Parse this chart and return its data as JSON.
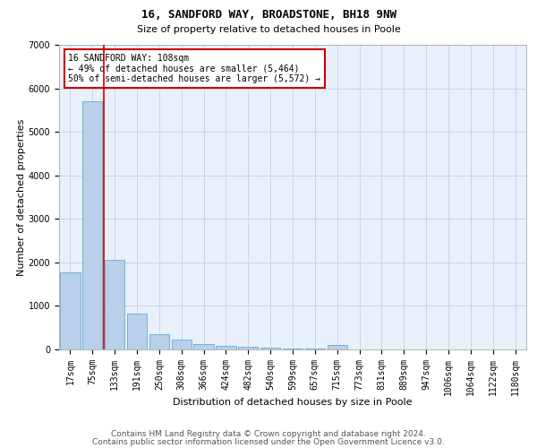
{
  "title": "16, SANDFORD WAY, BROADSTONE, BH18 9NW",
  "subtitle": "Size of property relative to detached houses in Poole",
  "xlabel": "Distribution of detached houses by size in Poole",
  "ylabel": "Number of detached properties",
  "bar_labels": [
    "17sqm",
    "75sqm",
    "133sqm",
    "191sqm",
    "250sqm",
    "308sqm",
    "366sqm",
    "424sqm",
    "482sqm",
    "540sqm",
    "599sqm",
    "657sqm",
    "715sqm",
    "773sqm",
    "831sqm",
    "889sqm",
    "947sqm",
    "1006sqm",
    "1064sqm",
    "1122sqm",
    "1180sqm"
  ],
  "bar_values": [
    1780,
    5700,
    2060,
    830,
    360,
    230,
    115,
    90,
    55,
    35,
    20,
    15,
    95,
    0,
    0,
    0,
    0,
    0,
    0,
    0,
    0
  ],
  "bar_color": "#b8d0ea",
  "bar_edge_color": "#6aaad4",
  "background_color": "#e8f0fa",
  "grid_color": "#c5d5e8",
  "vline_color": "#cc0000",
  "vline_pos": 1.5,
  "annotation_text": "16 SANDFORD WAY: 108sqm\n← 49% of detached houses are smaller (5,464)\n50% of semi-detached houses are larger (5,572) →",
  "annotation_box_color": "#ffffff",
  "annotation_box_edge": "#cc0000",
  "ylim": [
    0,
    7000
  ],
  "yticks": [
    0,
    1000,
    2000,
    3000,
    4000,
    5000,
    6000,
    7000
  ],
  "footer1": "Contains HM Land Registry data © Crown copyright and database right 2024.",
  "footer2": "Contains public sector information licensed under the Open Government Licence v3.0.",
  "title_fontsize": 9,
  "subtitle_fontsize": 8,
  "axis_label_fontsize": 8,
  "tick_fontsize": 7,
  "annotation_fontsize": 7,
  "footer_fontsize": 6.5
}
